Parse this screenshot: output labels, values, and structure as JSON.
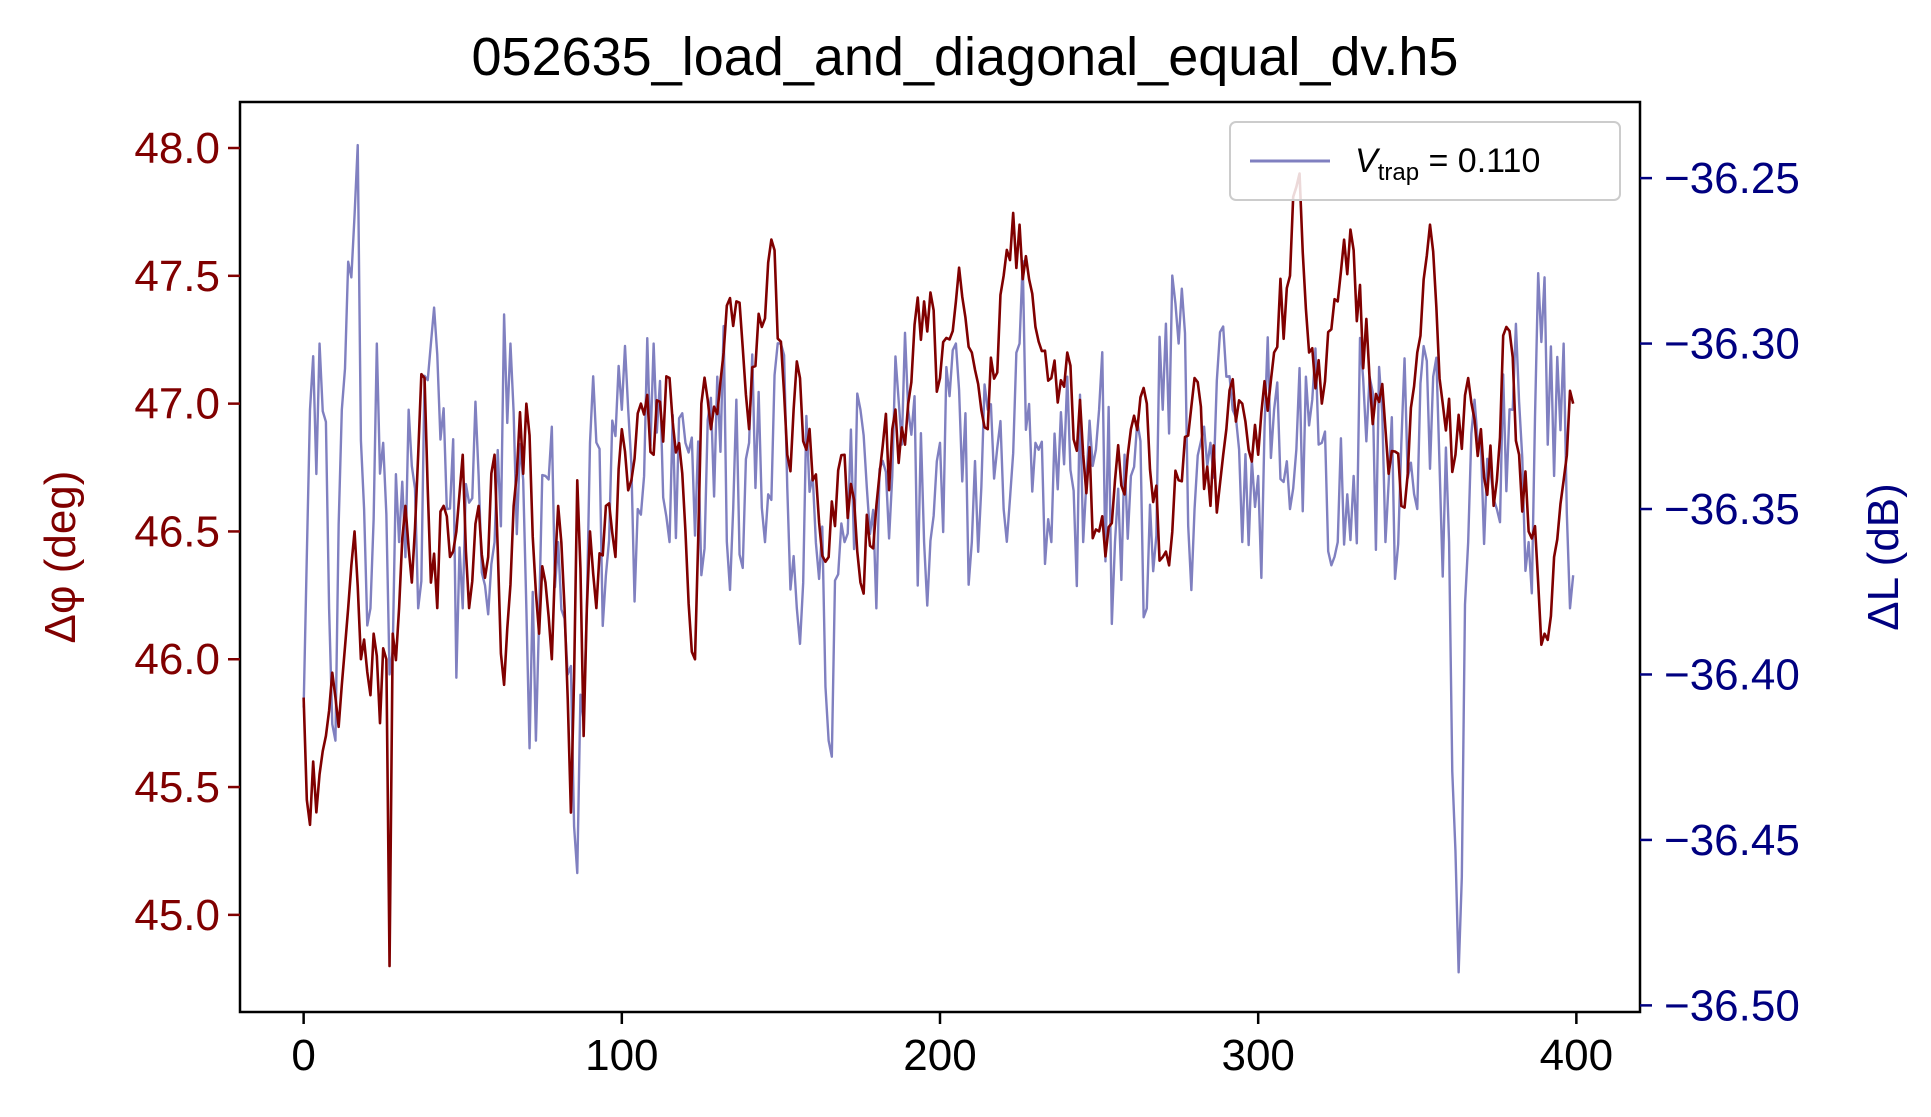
{
  "chart_data": {
    "type": "line",
    "title": "052635_load_and_diagonal_equal_dv.h5",
    "xlabel": "",
    "ylabel_left": "Δφ (deg)",
    "ylabel_right": "ΔL (dB)",
    "xlim": [
      -20,
      420
    ],
    "ylim_left": [
      44.62,
      48.18
    ],
    "ylim_right": [
      -36.502,
      -36.227
    ],
    "x_ticks": [
      0,
      100,
      200,
      300,
      400
    ],
    "x_tick_labels": [
      "0",
      "100",
      "200",
      "300",
      "400"
    ],
    "y_left_ticks": [
      45.0,
      45.5,
      46.0,
      46.5,
      47.0,
      47.5,
      48.0
    ],
    "y_left_tick_labels": [
      "45.0",
      "45.5",
      "46.0",
      "46.5",
      "47.0",
      "47.5",
      "48.0"
    ],
    "y_right_ticks": [
      -36.5,
      -36.45,
      -36.4,
      -36.35,
      -36.3,
      -36.25
    ],
    "y_right_tick_labels": [
      "−36.50",
      "−36.45",
      "−36.40",
      "−36.35",
      "−36.30",
      "−36.25"
    ],
    "grid": false,
    "legend_position": "top-right",
    "legend": {
      "label_main": "V",
      "label_sub": "trap",
      "label_rest": " = 0.110"
    },
    "colors": {
      "phase": "#800000",
      "loss": "#8080c0",
      "left_axis": "#800000",
      "right_axis": "#000080",
      "frame": "#000000"
    },
    "series": [
      {
        "axis": "left",
        "color": "#800000",
        "keypoints_x": [
          0,
          1,
          3,
          5,
          7,
          10,
          12,
          14,
          16,
          18,
          20,
          22,
          24,
          26,
          27,
          28,
          30,
          32,
          34,
          36,
          38,
          40,
          42,
          44,
          46,
          48,
          50,
          52,
          55,
          58,
          60,
          63,
          66,
          70,
          74,
          76,
          78,
          80,
          82,
          84,
          86,
          88,
          90,
          92,
          95,
          98,
          100,
          103,
          106,
          110,
          115,
          120,
          123,
          125,
          128,
          132,
          136,
          140,
          144,
          148,
          152,
          156,
          160,
          165,
          170,
          175,
          180,
          185,
          190,
          195,
          200,
          205,
          210,
          215,
          220,
          225,
          230,
          235,
          240,
          245,
          250,
          255,
          260,
          265,
          270,
          275,
          280,
          285,
          290,
          295,
          300,
          305,
          310,
          313,
          316,
          320,
          325,
          330,
          335,
          340,
          345,
          350,
          354,
          358,
          362,
          366,
          370,
          374,
          378,
          382,
          385,
          388,
          390,
          393,
          396,
          398,
          399
        ],
        "keypoints_y": [
          45.85,
          45.45,
          45.6,
          45.55,
          45.7,
          45.85,
          45.9,
          46.2,
          46.5,
          46.0,
          45.95,
          46.1,
          45.75,
          46.0,
          44.8,
          46.1,
          46.2,
          46.6,
          46.3,
          46.8,
          47.1,
          46.3,
          46.2,
          46.6,
          46.4,
          46.5,
          46.8,
          46.2,
          46.6,
          46.4,
          46.8,
          45.9,
          46.6,
          47.0,
          46.1,
          46.3,
          46.0,
          46.6,
          46.2,
          45.4,
          46.7,
          45.7,
          46.5,
          46.2,
          46.6,
          46.4,
          46.9,
          46.7,
          47.0,
          46.8,
          47.1,
          46.5,
          46.0,
          47.0,
          46.9,
          47.2,
          47.4,
          46.9,
          47.3,
          47.6,
          46.8,
          47.1,
          46.7,
          46.4,
          46.8,
          46.3,
          46.6,
          46.9,
          47.0,
          47.4,
          47.1,
          47.4,
          47.2,
          46.9,
          47.5,
          47.7,
          47.3,
          47.1,
          47.2,
          46.8,
          46.5,
          46.7,
          46.9,
          47.0,
          46.4,
          46.7,
          47.1,
          46.6,
          46.9,
          47.0,
          46.8,
          47.2,
          47.5,
          47.9,
          47.2,
          47.0,
          47.4,
          47.6,
          47.1,
          46.9,
          46.6,
          47.2,
          47.7,
          47.0,
          46.8,
          47.1,
          46.9,
          46.6,
          47.3,
          46.8,
          46.5,
          46.3,
          46.1,
          46.4,
          46.7,
          47.05,
          47.0
        ],
        "noise": 0.18,
        "n": 400
      },
      {
        "axis": "right",
        "color": "#8080c0",
        "keypoints_x": [
          0,
          2,
          5,
          8,
          10,
          12,
          15,
          17,
          19,
          21,
          23,
          25,
          27,
          30,
          33,
          36,
          40,
          45,
          50,
          55,
          60,
          65,
          70,
          73,
          76,
          80,
          83,
          86,
          90,
          95,
          100,
          105,
          110,
          115,
          120,
          125,
          130,
          135,
          140,
          145,
          150,
          155,
          160,
          165,
          170,
          175,
          180,
          185,
          190,
          195,
          200,
          205,
          210,
          215,
          220,
          225,
          230,
          235,
          240,
          245,
          250,
          255,
          260,
          265,
          270,
          275,
          280,
          285,
          290,
          295,
          300,
          305,
          310,
          315,
          320,
          325,
          330,
          335,
          340,
          345,
          350,
          355,
          360,
          363,
          366,
          370,
          375,
          380,
          385,
          390,
          393,
          396,
          398,
          399
        ],
        "keypoints_y": [
          -36.41,
          -36.32,
          -36.3,
          -36.38,
          -36.42,
          -36.32,
          -36.28,
          -36.24,
          -36.35,
          -36.38,
          -36.3,
          -36.33,
          -36.4,
          -36.36,
          -36.32,
          -36.38,
          -36.3,
          -36.35,
          -36.38,
          -36.34,
          -36.36,
          -36.3,
          -36.38,
          -36.42,
          -36.34,
          -36.36,
          -36.4,
          -36.46,
          -36.33,
          -36.37,
          -36.32,
          -36.35,
          -36.3,
          -36.36,
          -36.33,
          -36.37,
          -36.31,
          -36.35,
          -36.33,
          -36.36,
          -36.3,
          -36.38,
          -36.34,
          -36.42,
          -36.36,
          -36.32,
          -36.38,
          -36.34,
          -36.32,
          -36.36,
          -36.33,
          -36.3,
          -36.36,
          -36.32,
          -36.35,
          -36.3,
          -36.33,
          -36.36,
          -36.31,
          -36.36,
          -36.32,
          -36.36,
          -36.34,
          -36.38,
          -36.32,
          -36.3,
          -36.35,
          -36.33,
          -36.31,
          -36.36,
          -36.34,
          -36.32,
          -36.35,
          -36.31,
          -36.33,
          -36.36,
          -36.34,
          -36.31,
          -36.36,
          -36.33,
          -36.35,
          -36.31,
          -36.36,
          -36.49,
          -36.36,
          -36.33,
          -36.35,
          -36.32,
          -36.36,
          -36.28,
          -36.34,
          -36.3,
          -36.38,
          -36.37
        ],
        "noise": 0.035,
        "n": 400
      }
    ]
  }
}
